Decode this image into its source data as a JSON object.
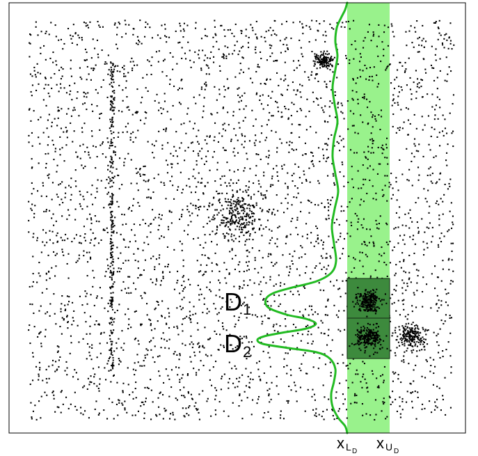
{
  "figure": {
    "labels": {
      "d1_main": "D",
      "d1_sub": "1",
      "d2_main": "D",
      "d2_sub": "2",
      "xl_main": "x",
      "xl_sub": "L",
      "xl_subsub": "D",
      "xu_main": "x",
      "xu_sub": "U",
      "xu_subsub": "D"
    },
    "colors": {
      "band": "#99f28c",
      "curve": "#22bb22",
      "box_fill": "#3d8a3d",
      "points": "#000000",
      "frame": "#000000"
    }
  }
}
